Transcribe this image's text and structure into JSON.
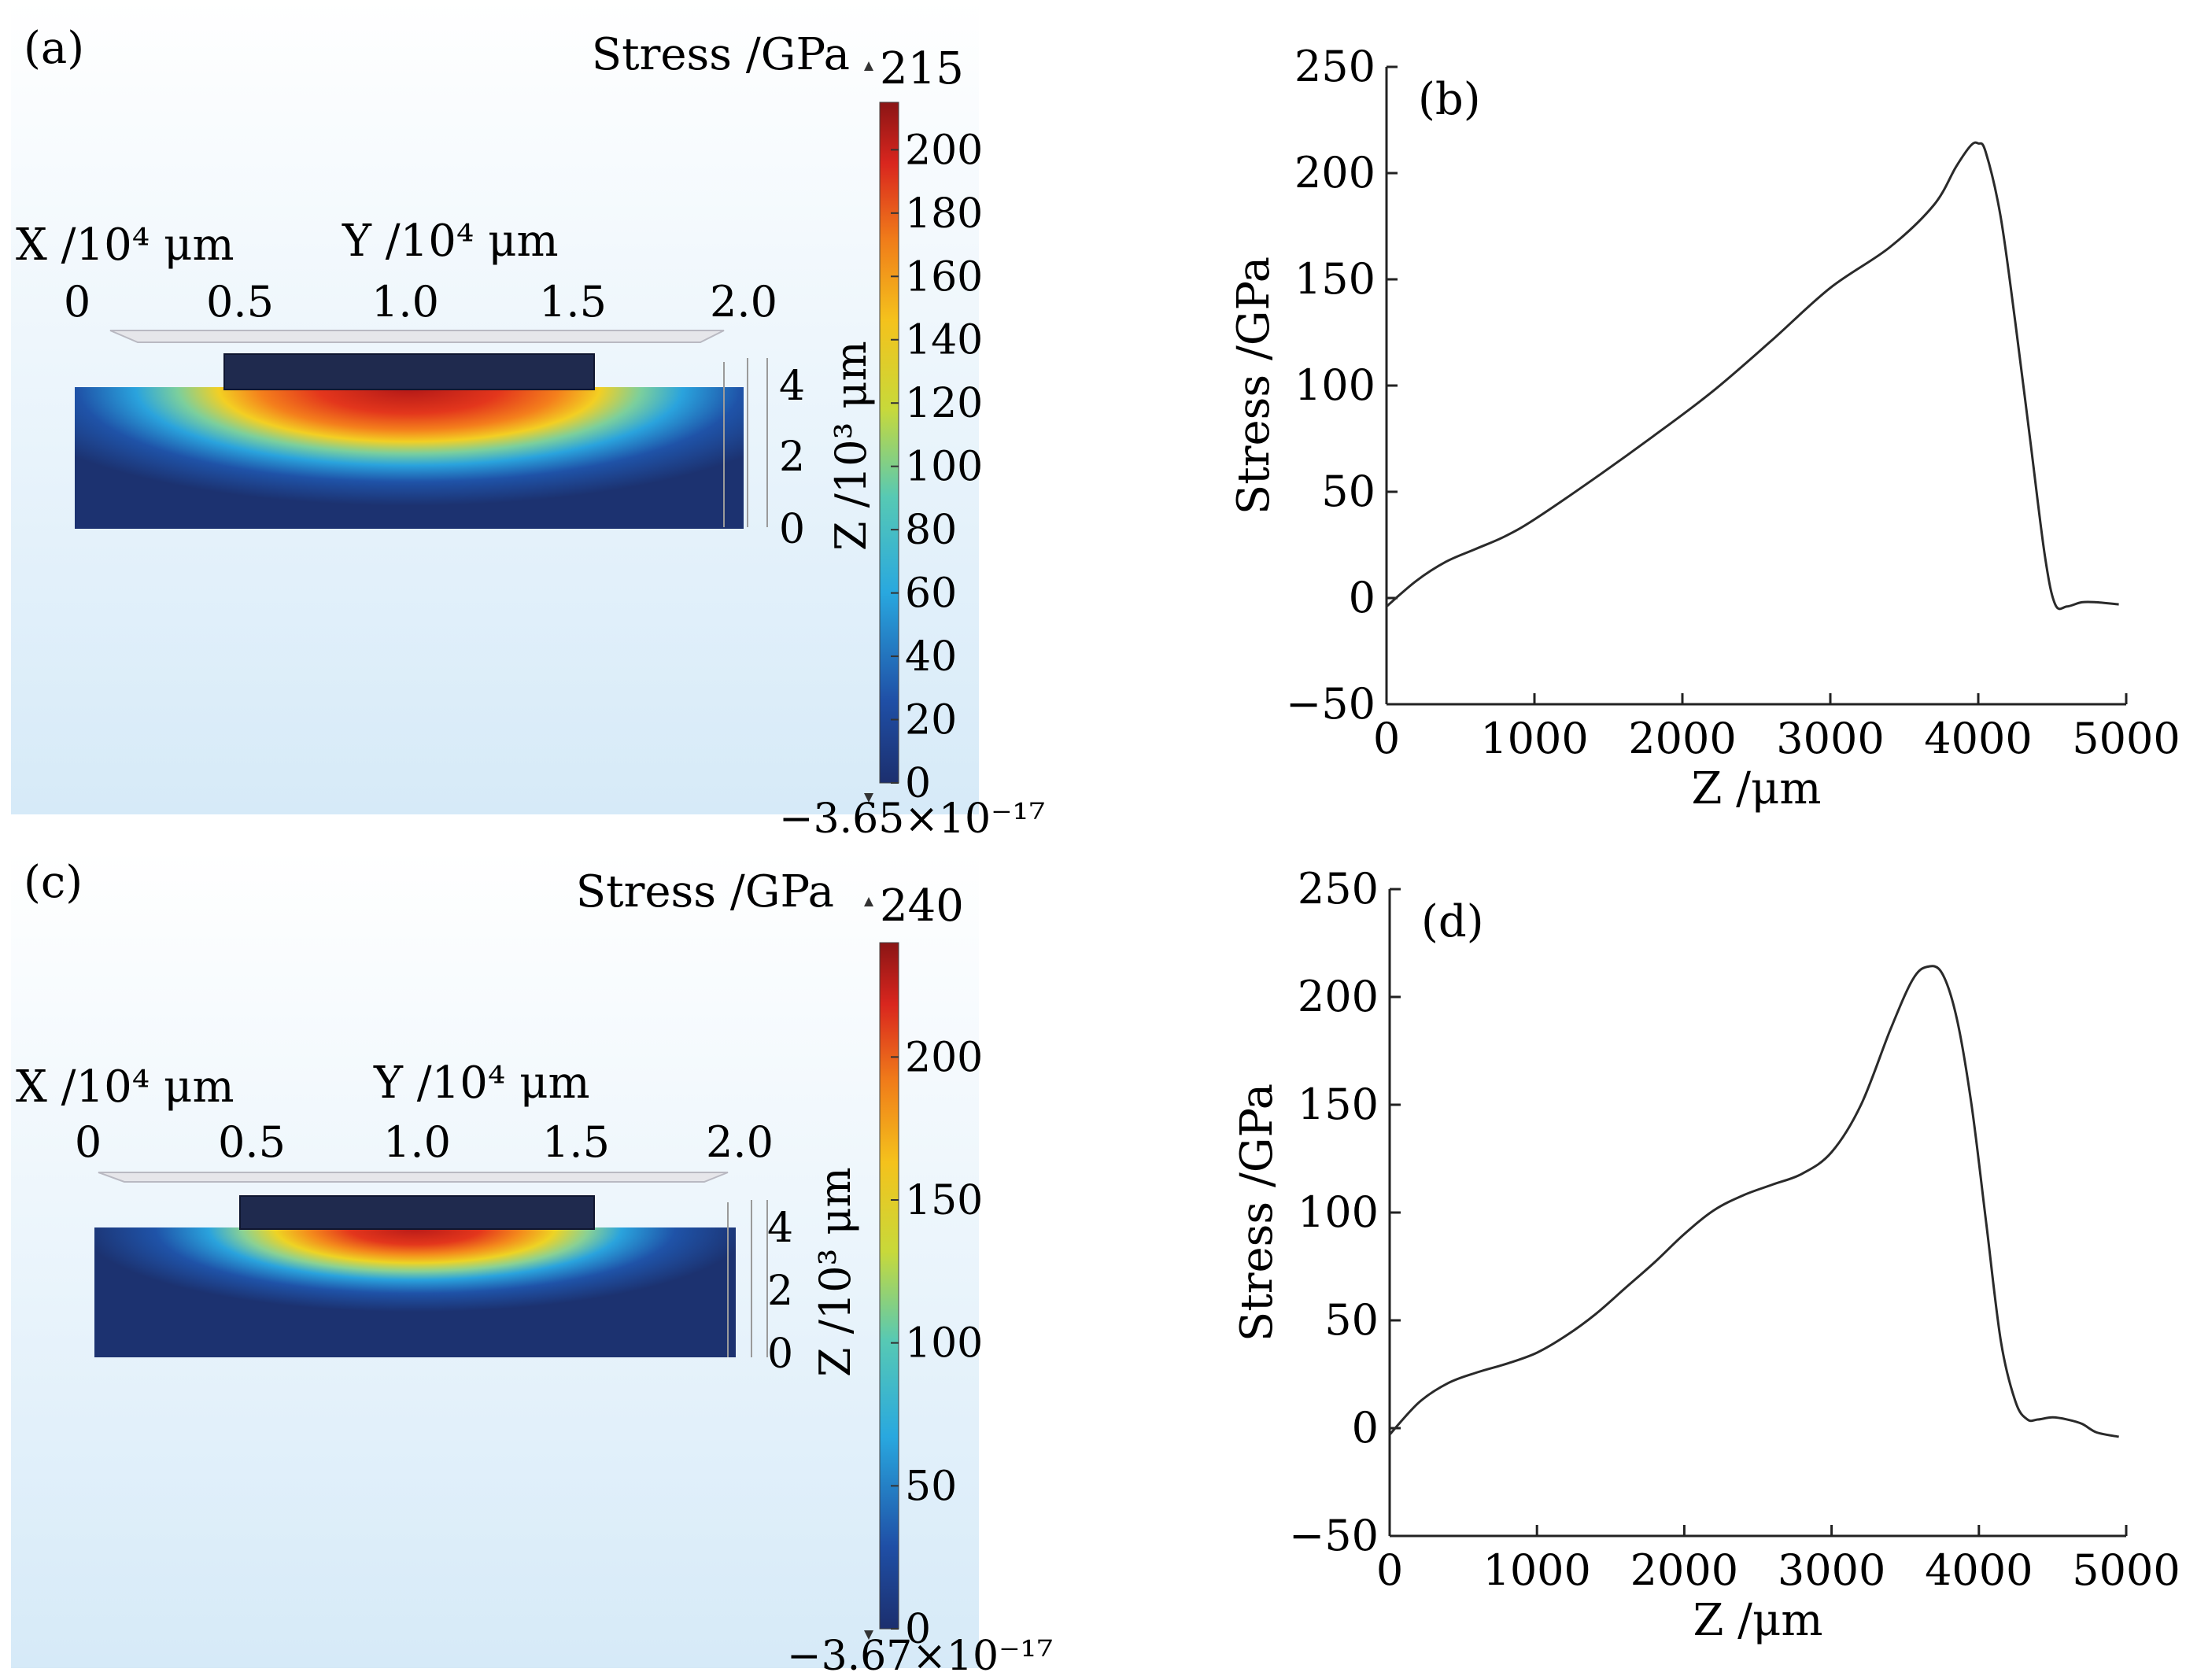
{
  "figure_panels": [
    {
      "id": "a",
      "label": "(a)",
      "title": "Stress /GPa",
      "x_axis_label": "X /10⁴ μm",
      "y_axis_label": "Y /10⁴ μm",
      "z_axis_label": "Z /10³ μm",
      "xy_ticks": [
        "0",
        "0.5",
        "1.0",
        "1.5",
        "2.0"
      ],
      "z_ticks": [
        "4",
        "2",
        "0"
      ],
      "colorbar": {
        "max_label": "215",
        "min_label": "−3.65×10⁻¹⁷",
        "ticks": [
          200,
          180,
          160,
          140,
          120,
          100,
          80,
          60,
          40,
          20,
          0
        ],
        "max": 215,
        "min": 0
      }
    },
    {
      "id": "c",
      "label": "(c)",
      "title": "Stress /GPa",
      "x_axis_label": "X /10⁴ μm",
      "y_axis_label": "Y /10⁴ μm",
      "z_axis_label": "Z /10³ μm",
      "xy_ticks": [
        "0",
        "0.5",
        "1.0",
        "1.5",
        "2.0"
      ],
      "z_ticks": [
        "4",
        "2",
        "0"
      ],
      "colorbar": {
        "max_label": "240",
        "min_label": "−3.67×10⁻¹⁷",
        "ticks": [
          200,
          150,
          100,
          50,
          0
        ],
        "max": 240,
        "min": 0
      }
    }
  ],
  "chart_data": [
    {
      "type": "line",
      "id": "b",
      "label": "(b)",
      "title": "",
      "xlabel": "Z /μm",
      "ylabel": "Stress /GPa",
      "xlim": [
        0,
        5000
      ],
      "ylim": [
        -50,
        250
      ],
      "xticks": [
        0,
        1000,
        2000,
        3000,
        4000,
        5000
      ],
      "yticks": [
        -50,
        0,
        50,
        100,
        150,
        200,
        250
      ],
      "grid": false,
      "series": [
        {
          "name": "Stress",
          "x": [
            0,
            200,
            400,
            600,
            800,
            1000,
            1400,
            1800,
            2200,
            2600,
            3000,
            3400,
            3700,
            3850,
            3950,
            4000,
            4050,
            4150,
            4250,
            4350,
            4450,
            4520,
            4600,
            4700,
            4800,
            4950
          ],
          "y": [
            -4,
            8,
            17,
            23,
            29,
            37,
            56,
            76,
            97,
            121,
            146,
            165,
            185,
            203,
            213,
            214,
            210,
            180,
            130,
            75,
            20,
            -3,
            -4,
            -2,
            -2,
            -3
          ]
        }
      ]
    },
    {
      "type": "line",
      "id": "d",
      "label": "(d)",
      "title": "",
      "xlabel": "Z /μm",
      "ylabel": "Stress /GPa",
      "xlim": [
        0,
        5000
      ],
      "ylim": [
        -50,
        250
      ],
      "xticks": [
        0,
        1000,
        2000,
        3000,
        4000,
        5000
      ],
      "yticks": [
        -50,
        0,
        50,
        100,
        150,
        200,
        250
      ],
      "grid": false,
      "series": [
        {
          "name": "Stress",
          "x": [
            0,
            200,
            400,
            600,
            800,
            1000,
            1200,
            1400,
            1600,
            1800,
            2000,
            2200,
            2400,
            2600,
            2800,
            3000,
            3200,
            3400,
            3550,
            3650,
            3750,
            3850,
            3950,
            4050,
            4150,
            4250,
            4330,
            4400,
            4500,
            4600,
            4700,
            4800,
            4950
          ],
          "y": [
            -3,
            12,
            21,
            26,
            30,
            35,
            43,
            53,
            65,
            77,
            90,
            101,
            108,
            113,
            118,
            128,
            150,
            185,
            208,
            214,
            211,
            190,
            150,
            95,
            40,
            12,
            4,
            4,
            5,
            4,
            2,
            -2,
            -4
          ]
        }
      ]
    }
  ]
}
